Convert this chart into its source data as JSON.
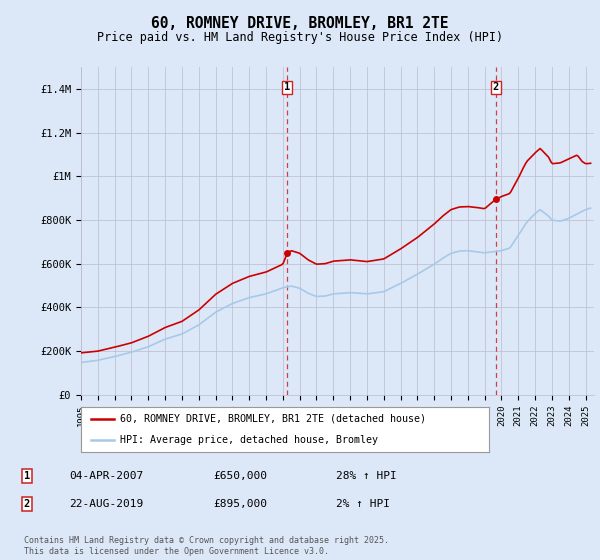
{
  "title": "60, ROMNEY DRIVE, BROMLEY, BR1 2TE",
  "subtitle": "Price paid vs. HM Land Registry's House Price Index (HPI)",
  "ylabel_ticks": [
    "£0",
    "£200K",
    "£400K",
    "£600K",
    "£800K",
    "£1M",
    "£1.2M",
    "£1.4M"
  ],
  "ytick_values": [
    0,
    200000,
    400000,
    600000,
    800000,
    1000000,
    1200000,
    1400000
  ],
  "ylim": [
    0,
    1500000
  ],
  "legend_line1": "60, ROMNEY DRIVE, BROMLEY, BR1 2TE (detached house)",
  "legend_line2": "HPI: Average price, detached house, Bromley",
  "annotation1_label": "1",
  "annotation1_date": "04-APR-2007",
  "annotation1_price": "£650,000",
  "annotation1_hpi": "28% ↑ HPI",
  "annotation2_label": "2",
  "annotation2_date": "22-AUG-2019",
  "annotation2_price": "£895,000",
  "annotation2_hpi": "2% ↑ HPI",
  "footer": "Contains HM Land Registry data © Crown copyright and database right 2025.\nThis data is licensed under the Open Government Licence v3.0.",
  "sale_color": "#cc0000",
  "hpi_color": "#a8c8e8",
  "background_color": "#dce8f8",
  "plot_bg": "#dce8f8",
  "vline_color": "#cc2222",
  "grid_color": "#bbbbcc",
  "sale1_x": 2007.27,
  "sale1_y": 650000,
  "sale2_x": 2019.65,
  "sale2_y": 895000,
  "xmin": 1995,
  "xmax": 2025.5
}
